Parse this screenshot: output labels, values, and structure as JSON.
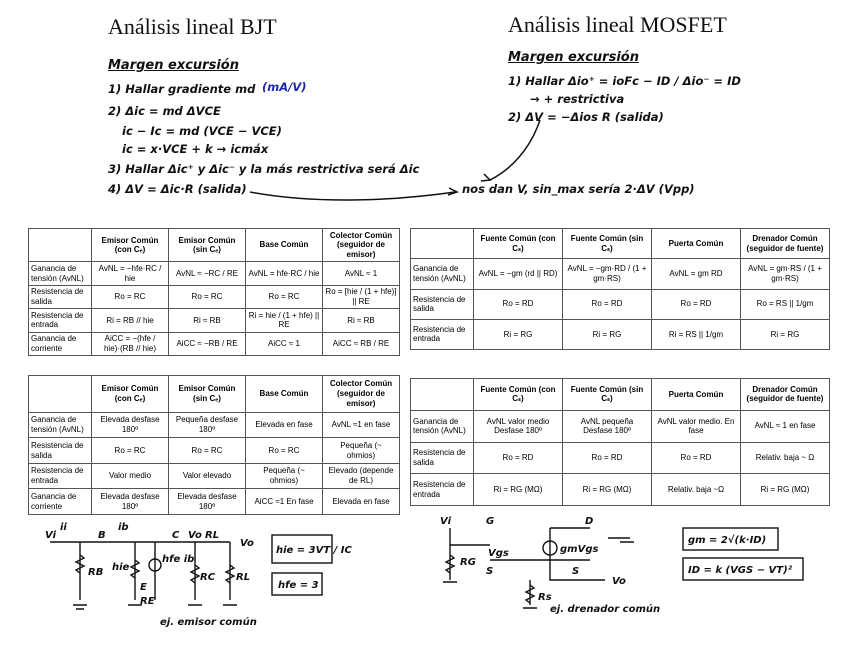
{
  "left": {
    "title": "Análisis lineal BJT",
    "heading": "Margen excursión",
    "notes": [
      "1) Hallar gradiente md",
      "(mA/V)",
      "2) Δic = md ΔVCE",
      "ic − Ic = md (VCE − VCE)",
      "ic = x·VCE + k → icmáx",
      "3) Hallar Δic⁺ y Δic⁻ y la más restrictiva será Δic",
      "4) ΔV = Δic·R (salida)"
    ]
  },
  "right": {
    "title": "Análisis lineal MOSFET",
    "heading": "Margen excursión",
    "notes": [
      "1) Hallar Δio⁺ = ioFc − ID / Δio⁻ = ID",
      "→ + restrictiva",
      "2) ΔV = −Δios R (salida)"
    ]
  },
  "conclusion": "nos dan V, sin_max sería 2·ΔV (Vpp)",
  "tables": [
    {
      "header": [
        "",
        "Emisor Común (con Cₑ)",
        "Emisor Común (sin Cₑ)",
        "Base Común",
        "Colector Común (seguidor de emisor)"
      ],
      "rows": [
        [
          "Ganancia de tensión (AvNL)",
          "AvNL = −hfe·RC / hie",
          "AvNL ≈ −RC / RE",
          "AvNL = hfe·RC / hie",
          "AvNL ≈ 1"
        ],
        [
          "Resistencia de salida",
          "Ro = RC",
          "Ro = RC",
          "Ro = RC",
          "Ro = [hie / (1 + hfe)] || RE"
        ],
        [
          "Resistencia de entrada",
          "Ri = RB // hie",
          "Ri ≈ RB",
          "Ri = hie / (1 + hfe) || RE",
          "Ri ≈ RB"
        ],
        [
          "Ganancia de corriente",
          "AiCC = −(hfe / hie)·(RB // hie)",
          "AiCC ≈ −RB / RE",
          "AiCC ≈ 1",
          "AiCC ≈ RB / RE"
        ]
      ]
    },
    {
      "header": [
        "",
        "Fuente Común (con Cₛ)",
        "Fuente Común (sin Cₛ)",
        "Puerta Común",
        "Drenador Común (seguidor de fuente)"
      ],
      "rows": [
        [
          "Ganancia de tensión (AvNL)",
          "AvNL = −gm (rd || RD)",
          "AvNL = −gm·RD / (1 + gm·RS)",
          "AvNL = gm RD",
          "AvNL = gm·RS / (1 + gm·RS)"
        ],
        [
          "Resistencia de salida",
          "Ro = RD",
          "Ro = RD",
          "Ro = RD",
          "Ro = RS || 1/gm"
        ],
        [
          "Resistencia de entrada",
          "Ri = RG",
          "Ri = RG",
          "Ri = RS || 1/gm",
          "Ri = RG"
        ]
      ]
    },
    {
      "header": [
        "",
        "Emisor Común (con Cₑ)",
        "Emisor Común (sin Cₑ)",
        "Base Común",
        "Colector Común (seguidor de emisor)"
      ],
      "rows": [
        [
          "Ganancia de tensión (AvNL)",
          "Elevada desfase 180º",
          "Pequeña desfase 180º",
          "Elevada en fase",
          "AvNL ≈1 en fase"
        ],
        [
          "Resistencia de salida",
          "Ro = RC",
          "Ro = RC",
          "Ro = RC",
          "Pequeña (~ ohmios)"
        ],
        [
          "Resistencia de entrada",
          "Valor medio",
          "Valor elevado",
          "Pequeña (~ ohmios)",
          "Elevado (depende de RL)"
        ],
        [
          "Ganancia de corriente",
          "Elevada desfase 180º",
          "Elevada desfase 180º",
          "AiCC ≈1 En fase",
          "Elevada en fase"
        ]
      ]
    },
    {
      "header": [
        "",
        "Fuente Común (con Cₛ)",
        "Fuente Común (sin Cₛ)",
        "Puerta Común",
        "Drenador Común (seguidor de fuente)"
      ],
      "rows": [
        [
          "Ganancia de tensión (AvNL)",
          "AvNL valor medio Desfase 180º",
          "AvNL pequeña Desfase 180º",
          "AvNL valor medio. En fase",
          "AvNL ≈ 1 en fase"
        ],
        [
          "Resistencia de salida",
          "Ro = RD",
          "Ro = RD",
          "Ro = RD",
          "Relativ. baja ~ Ω"
        ],
        [
          "Resistencia de entrada",
          "Ri = RG (MΩ)",
          "Ri = RG (MΩ)",
          "Relativ. baja ~Ω",
          "Ri = RG (MΩ)"
        ]
      ]
    }
  ],
  "bjt_circuit": {
    "labels": [
      "Vi",
      "ii",
      "B",
      "ib",
      "hie",
      "hfe ib",
      "C",
      "Vo",
      "RL",
      "RB",
      "E",
      "RE",
      "RC",
      "RL",
      "Vo"
    ],
    "boxes": [
      "hie = 3VT / IC",
      "hfe = 3"
    ],
    "caption": "ej. emisor común"
  },
  "mos_circuit": {
    "labels": [
      "Vi",
      "G",
      "D",
      "RG",
      "Vgs",
      "gmVgs",
      "S",
      "S",
      "Vo",
      "Rs"
    ],
    "boxes": [
      "gm = 2√(k·ID)",
      "ID = k (VGS − VT)²"
    ],
    "caption": "ej. drenador común"
  }
}
